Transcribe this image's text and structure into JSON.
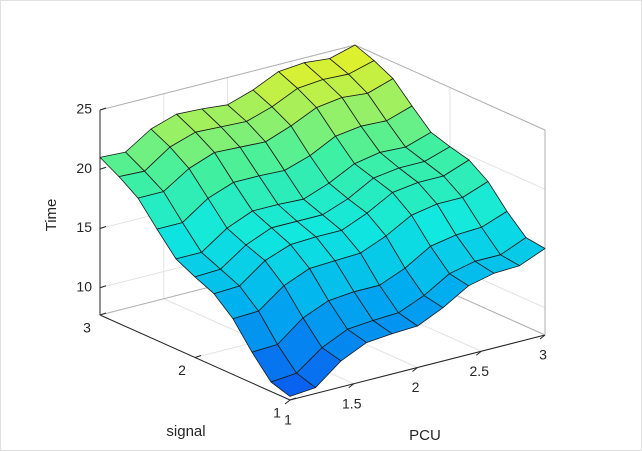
{
  "chart_data": {
    "type": "surface",
    "colormap": "parula",
    "grid": true,
    "xlabel": "PCU",
    "ylabel": "signal",
    "zlabel": "Time",
    "x": [
      1,
      1.2,
      1.4,
      1.6,
      1.8,
      2,
      2.2,
      2.4,
      2.6,
      2.8,
      3
    ],
    "y": [
      1,
      1.2,
      1.4,
      1.6,
      1.8,
      2,
      2.2,
      2.4,
      2.6,
      2.8,
      3
    ],
    "z": [
      [
        8,
        8.2,
        9.9,
        10.9,
        11.1,
        11.2,
        12.2,
        13.5,
        14,
        14.1,
        15
      ],
      [
        8.5,
        8.7,
        10.3,
        11.3,
        11.5,
        11.6,
        12.5,
        13.8,
        14.3,
        14.3,
        15.2
      ],
      [
        10.3,
        10.4,
        12.1,
        13,
        13.2,
        13.2,
        14.1,
        15.4,
        15.8,
        15.9,
        16.7
      ],
      [
        12.4,
        12.5,
        14.1,
        15,
        15.1,
        15.2,
        16.1,
        17.3,
        17.7,
        17.7,
        18.5
      ],
      [
        13.8,
        13.9,
        15.5,
        16.3,
        16.4,
        16.4,
        17.3,
        18.5,
        18.8,
        18.8,
        19.6
      ],
      [
        14.5,
        14.6,
        16.1,
        17,
        17,
        17,
        17.8,
        19,
        19.3,
        19.3,
        20
      ],
      [
        15.3,
        15.3,
        16.8,
        17.7,
        17.7,
        17.6,
        18.4,
        19.5,
        19.9,
        19.8,
        20.5
      ],
      [
        17.1,
        17.1,
        18.6,
        19.4,
        19.4,
        19.3,
        20,
        21.1,
        21.4,
        21.3,
        22
      ],
      [
        19,
        19,
        20.4,
        21.2,
        21.1,
        21,
        21.8,
        22.8,
        23.1,
        22.9,
        23.6
      ],
      [
        20.1,
        20,
        21.5,
        22.2,
        22.1,
        22,
        22.7,
        23.7,
        23.9,
        23.8,
        24.4
      ],
      [
        21,
        20.9,
        22.3,
        23,
        22.9,
        22.7,
        23.4,
        24.4,
        24.6,
        24.4,
        25
      ]
    ],
    "xlim": [
      1,
      3
    ],
    "xticks": [
      1,
      1.5,
      2,
      2.5,
      3
    ],
    "ylim": [
      1,
      3
    ],
    "yticks": [
      1,
      2,
      3
    ],
    "zlim": [
      7.7,
      25
    ],
    "zticks": [
      10,
      15,
      20,
      25
    ]
  }
}
